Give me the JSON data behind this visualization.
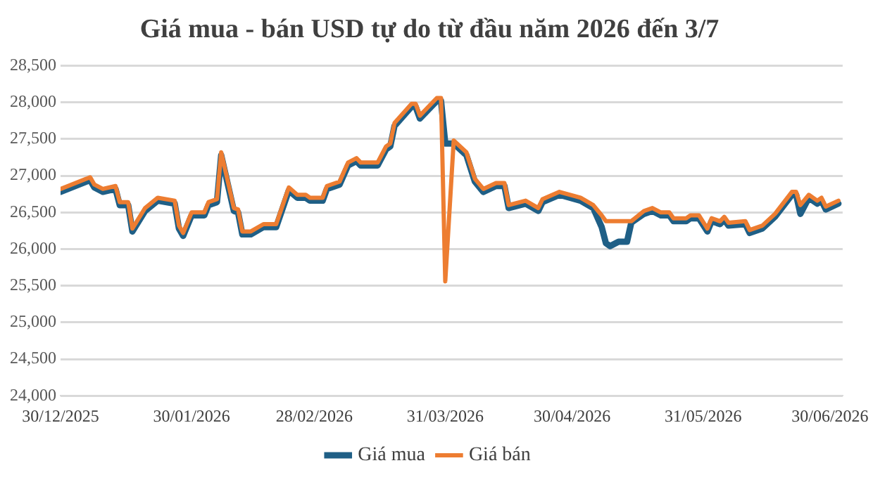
{
  "chart_data": {
    "type": "line",
    "title": "Giá mua - bán USD tự do từ đầu năm 2026 đến 3/7",
    "x": [
      "2025-12-30",
      "2026-01-06",
      "2026-01-07",
      "2026-01-09",
      "2026-01-12",
      "2026-01-13",
      "2026-01-15",
      "2026-01-16",
      "2026-01-19",
      "2026-01-22",
      "2026-01-26",
      "2026-01-27",
      "2026-01-28",
      "2026-01-30",
      "2026-02-02",
      "2026-02-03",
      "2026-02-05",
      "2026-02-06",
      "2026-02-09",
      "2026-02-10",
      "2026-02-11",
      "2026-02-13",
      "2026-02-16",
      "2026-02-19",
      "2026-02-22",
      "2026-02-24",
      "2026-02-26",
      "2026-02-27",
      "2026-03-02",
      "2026-03-03",
      "2026-03-06",
      "2026-03-08",
      "2026-03-10",
      "2026-03-11",
      "2026-03-15",
      "2026-03-17",
      "2026-03-18",
      "2026-03-19",
      "2026-03-23",
      "2026-03-24",
      "2026-03-25",
      "2026-03-27",
      "2026-03-29",
      "2026-03-30",
      "2026-03-31",
      "2026-04-02",
      "2026-04-05",
      "2026-04-07",
      "2026-04-09",
      "2026-04-12",
      "2026-04-14",
      "2026-04-15",
      "2026-04-19",
      "2026-04-22",
      "2026-04-23",
      "2026-04-27",
      "2026-05-02",
      "2026-05-05",
      "2026-05-07",
      "2026-05-08",
      "2026-05-09",
      "2026-05-11",
      "2026-05-13",
      "2026-05-14",
      "2026-05-17",
      "2026-05-19",
      "2026-05-21",
      "2026-05-23",
      "2026-05-24",
      "2026-05-27",
      "2026-05-28",
      "2026-05-30",
      "2026-06-01",
      "2026-06-02",
      "2026-06-04",
      "2026-06-05",
      "2026-06-06",
      "2026-06-10",
      "2026-06-11",
      "2026-06-14",
      "2026-06-17",
      "2026-06-21",
      "2026-06-22",
      "2026-06-23",
      "2026-06-25",
      "2026-06-27",
      "2026-06-28",
      "2026-06-29",
      "2026-07-02"
    ],
    "series": [
      {
        "name": "Giá mua",
        "color": "#1f5f86",
        "values": [
          26780,
          26940,
          26840,
          26780,
          26820,
          26600,
          26600,
          26240,
          26520,
          26660,
          26620,
          26280,
          26180,
          26460,
          26460,
          26600,
          26640,
          27280,
          26520,
          26500,
          26200,
          26200,
          26300,
          26300,
          26800,
          26700,
          26700,
          26660,
          26660,
          26820,
          26880,
          27140,
          27200,
          27140,
          27140,
          27360,
          27400,
          27680,
          27940,
          27940,
          27780,
          27900,
          28020,
          28020,
          27440,
          27440,
          27280,
          26920,
          26780,
          26860,
          26860,
          26560,
          26620,
          26520,
          26640,
          26740,
          26660,
          26560,
          26300,
          26080,
          26040,
          26100,
          26100,
          26360,
          26480,
          26520,
          26460,
          26460,
          26380,
          26380,
          26420,
          26420,
          26240,
          26380,
          26340,
          26400,
          26320,
          26340,
          26220,
          26280,
          26440,
          26740,
          26740,
          26480,
          26700,
          26620,
          26660,
          26540,
          26620
        ]
      },
      {
        "name": "Giá bán",
        "color": "#ed7d31",
        "values": [
          26820,
          26980,
          26880,
          26820,
          26860,
          26640,
          26640,
          26280,
          26560,
          26700,
          26660,
          26320,
          26220,
          26500,
          26500,
          26640,
          26680,
          27320,
          26560,
          26540,
          26240,
          26240,
          26340,
          26340,
          26840,
          26740,
          26740,
          26700,
          26700,
          26860,
          26920,
          27180,
          27240,
          27180,
          27180,
          27400,
          27440,
          27720,
          27980,
          27980,
          27820,
          27940,
          28060,
          28060,
          25560,
          27480,
          27320,
          26960,
          26820,
          26900,
          26900,
          26600,
          26660,
          26560,
          26680,
          26780,
          26700,
          26600,
          26460,
          26380,
          26380,
          26380,
          26380,
          26380,
          26520,
          26560,
          26500,
          26500,
          26420,
          26420,
          26460,
          26460,
          26280,
          26420,
          26380,
          26440,
          26360,
          26380,
          26260,
          26320,
          26480,
          26780,
          26780,
          26600,
          26740,
          26660,
          26700,
          26580,
          26660
        ]
      }
    ],
    "xlim": [
      "2025-12-30",
      "2026-07-03"
    ],
    "xticks": [
      {
        "value": "2025-12-30",
        "label": "30/12/2025"
      },
      {
        "value": "2026-01-30",
        "label": "30/01/2026"
      },
      {
        "value": "2026-02-28",
        "label": "28/02/2026"
      },
      {
        "value": "2026-03-31",
        "label": "31/03/2026"
      },
      {
        "value": "2026-04-30",
        "label": "30/04/2026"
      },
      {
        "value": "2026-05-31",
        "label": "31/05/2026"
      },
      {
        "value": "2026-06-30",
        "label": "30/06/2026"
      }
    ],
    "ylim": [
      24000,
      28500
    ],
    "yticks": [
      {
        "value": 24000,
        "label": "24,000"
      },
      {
        "value": 24500,
        "label": "24,500"
      },
      {
        "value": 25000,
        "label": "25,000"
      },
      {
        "value": 25500,
        "label": "25,500"
      },
      {
        "value": 26000,
        "label": "26,000"
      },
      {
        "value": 26500,
        "label": "26,500"
      },
      {
        "value": 27000,
        "label": "27,000"
      },
      {
        "value": 27500,
        "label": "27,500"
      },
      {
        "value": 28000,
        "label": "28,000"
      },
      {
        "value": 28500,
        "label": "28,500"
      }
    ],
    "grid": "y",
    "legend": "bottom",
    "marker": "none",
    "line_style": "solid"
  }
}
